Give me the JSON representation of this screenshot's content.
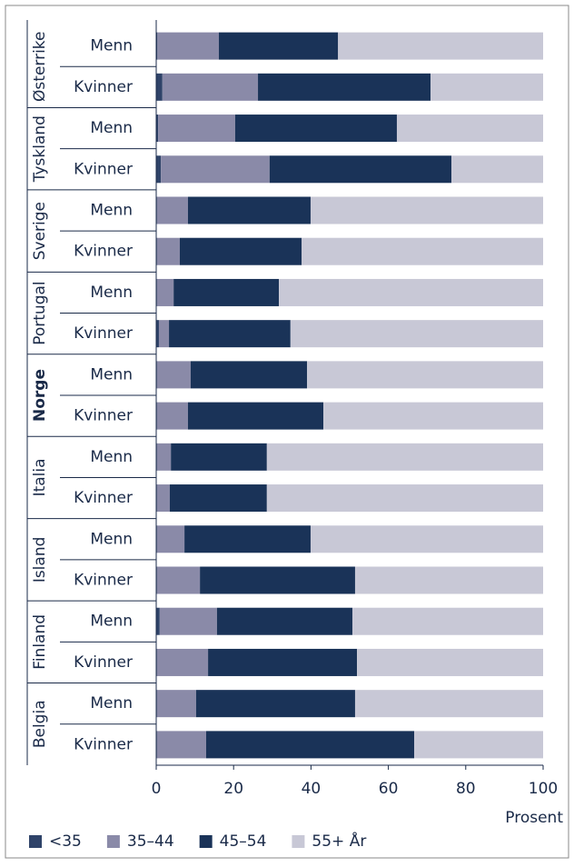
{
  "chart_data": {
    "type": "stacked-barh",
    "x_label": "Prosent",
    "groups": [
      "Østerrike",
      "Tyskland",
      "Sverige",
      "Portugal",
      "Norge",
      "Italia",
      "Island",
      "Finland",
      "Belgia"
    ],
    "highlight_group": 4,
    "categories": [
      "Menn",
      "Kvinner",
      "Menn",
      "Kvinner",
      "Menn",
      "Kvinner",
      "Menn",
      "Kvinner",
      "Menn",
      "Kvinner",
      "Menn",
      "Kvinner",
      "Menn",
      "Kvinner",
      "Menn",
      "Kvinner",
      "Menn",
      "Kvinner"
    ],
    "series": [
      {
        "name": "<35",
        "color": "#2f4369",
        "values": [
          0.3,
          1.6,
          0.5,
          1.2,
          0.2,
          0.2,
          0.2,
          0.7,
          0.2,
          0.2,
          0.2,
          0.2,
          0.2,
          0.2,
          0.9,
          0.2,
          0.2,
          0.2
        ]
      },
      {
        "name": "35–44",
        "color": "#8a8aa8",
        "values": [
          15.9,
          24.7,
          19.9,
          28.1,
          8.0,
          5.9,
          4.3,
          2.6,
          8.7,
          8.0,
          3.6,
          3.3,
          7.1,
          11.1,
          14.8,
          13.2,
          10.1,
          12.7
        ]
      },
      {
        "name": "45–54",
        "color": "#1a3358",
        "values": [
          30.8,
          44.6,
          41.8,
          47.0,
          31.7,
          31.5,
          27.2,
          31.4,
          30.1,
          35.0,
          24.8,
          25.1,
          32.6,
          40.1,
          35.0,
          38.5,
          41.1,
          53.8
        ]
      },
      {
        "name": "55+ År",
        "color": "#c8c8d6",
        "values": [
          53.0,
          29.1,
          37.8,
          23.7,
          60.1,
          62.4,
          68.3,
          65.3,
          61.0,
          56.8,
          71.4,
          71.4,
          60.1,
          48.6,
          49.3,
          48.1,
          48.6,
          33.3
        ]
      }
    ],
    "xlim": [
      0,
      100
    ],
    "xticks": [
      0,
      20,
      40,
      60,
      80,
      100
    ]
  }
}
